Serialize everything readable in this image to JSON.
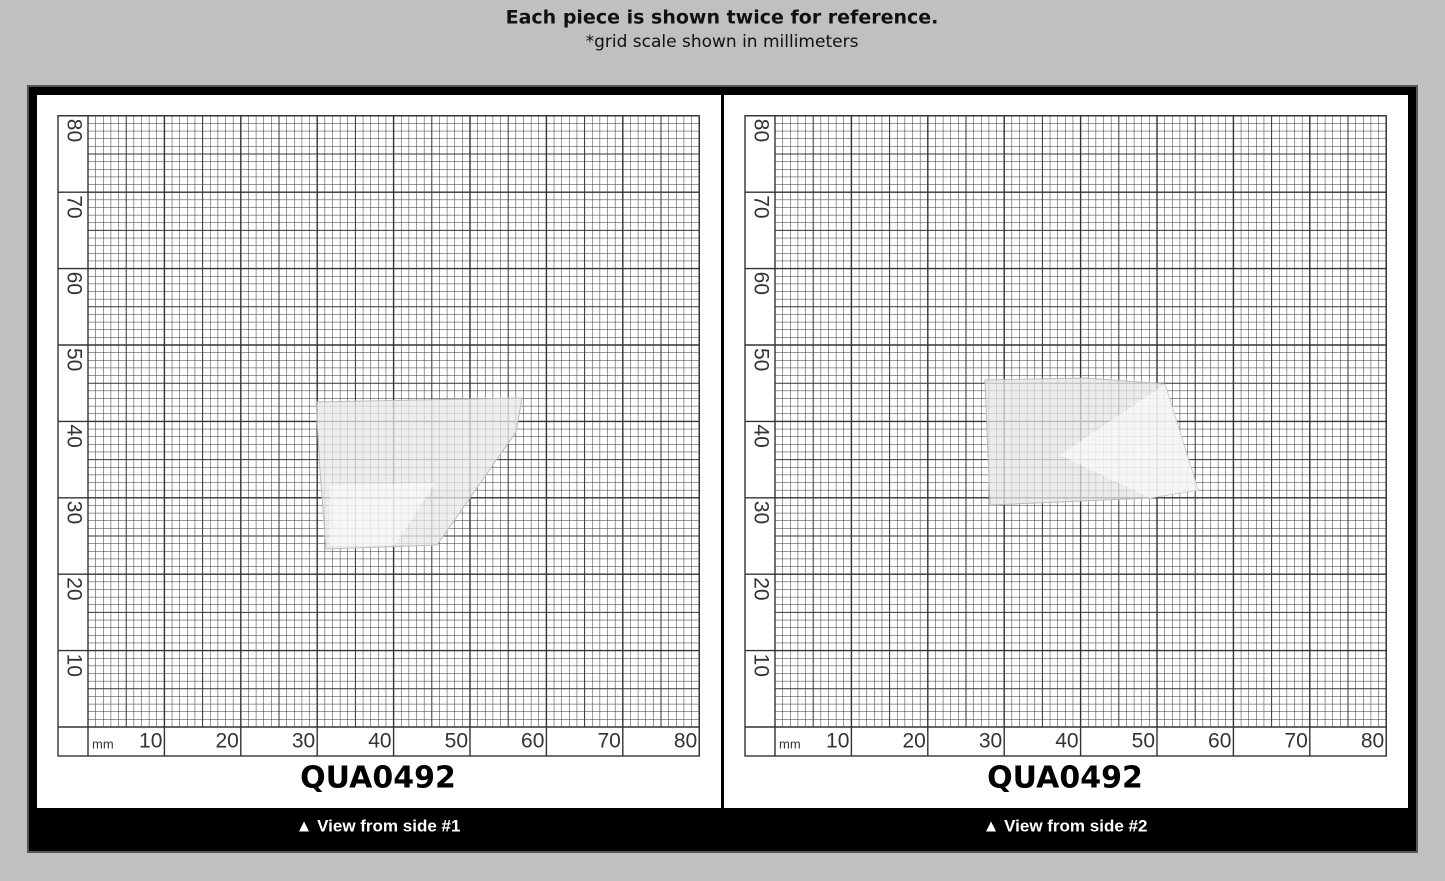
{
  "header": {
    "title": "Each piece is shown twice for reference.",
    "subtitle": "*grid scale shown in millimeters"
  },
  "panels": [
    {
      "unit": "mm",
      "x_labels": [
        "10",
        "20",
        "30",
        "40",
        "50",
        "60",
        "70",
        "80"
      ],
      "y_labels": [
        "10",
        "20",
        "30",
        "40",
        "50",
        "60",
        "70",
        "80"
      ],
      "code": "QUA0492",
      "caption": "▲ View from side #1"
    },
    {
      "unit": "mm",
      "x_labels": [
        "10",
        "20",
        "30",
        "40",
        "50",
        "60",
        "70",
        "80"
      ],
      "y_labels": [
        "10",
        "20",
        "30",
        "40",
        "50",
        "60",
        "70",
        "80"
      ],
      "code": "QUA0492",
      "caption": "▲ View from side #2"
    }
  ]
}
